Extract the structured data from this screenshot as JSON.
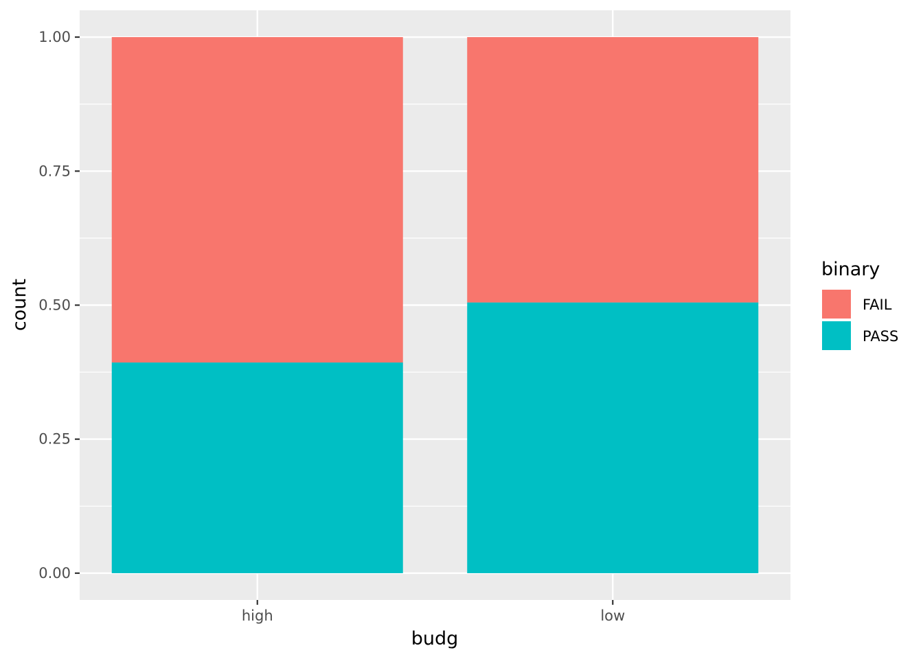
{
  "chart_data": {
    "type": "bar",
    "stacking": "fill",
    "categories": [
      "high",
      "low"
    ],
    "series": [
      {
        "name": "FAIL",
        "values": [
          0.607,
          0.495
        ],
        "color": "#F8766D"
      },
      {
        "name": "PASS",
        "values": [
          0.393,
          0.505
        ],
        "color": "#00BFC4"
      }
    ],
    "xlabel": "budg",
    "ylabel": "count",
    "ylim": [
      -0.05,
      1.05
    ],
    "yticks": [
      0.0,
      0.25,
      0.5,
      0.75,
      1.0
    ],
    "ytick_labels": [
      "0.00",
      "0.25",
      "0.50",
      "0.75",
      "1.00"
    ],
    "legend": {
      "title": "binary",
      "position": "right"
    },
    "grid": true,
    "panel_background": "#EBEBEB",
    "gridline_color": "#FFFFFF"
  }
}
